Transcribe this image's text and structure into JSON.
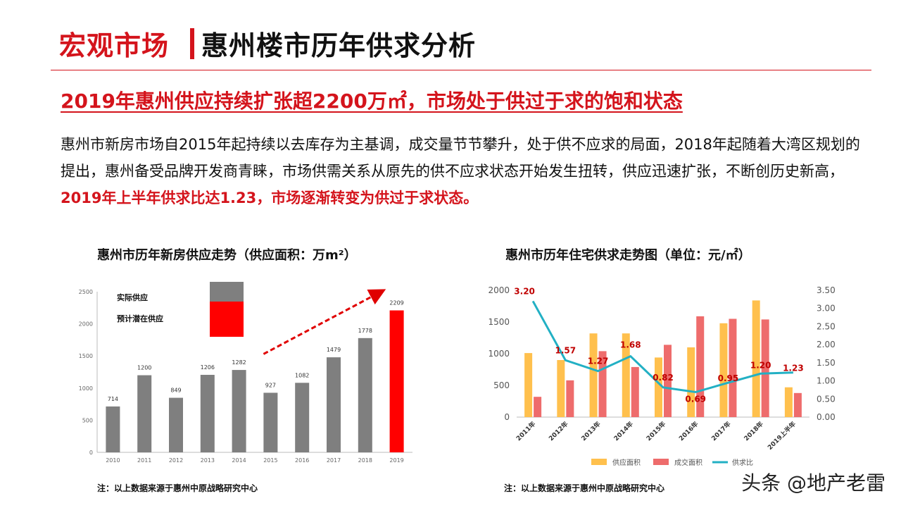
{
  "header": {
    "section": "宏观市场",
    "title": "惠州楼市历年供求分析"
  },
  "headline": "2019年惠州供应持续扩张超2200万㎡，市场处于供过于求的饱和状态",
  "body": {
    "text": "惠州市新房市场自2015年起持续以去库存为主基调，成交量节节攀升，处于供不应求的局面，2018年起随着大湾区规划的提出，惠州备受品牌开发商青睐，市场供需关系从原先的供不应求状态开始发生扭转，供应迅速扩张，不断创历史新高，",
    "highlight": "2019年上半年供求比达1.23，市场逐渐转变为供过于求状态。"
  },
  "chart_data": [
    {
      "type": "bar",
      "title": "惠州市历年新房供应走势（供应面积：万m²）",
      "categories": [
        "2010",
        "2011",
        "2012",
        "2013",
        "2014",
        "2015",
        "2016",
        "2017",
        "2018",
        "2019"
      ],
      "values": [
        714,
        1200,
        849,
        1206,
        1282,
        927,
        1082,
        1479,
        1778,
        2209
      ],
      "highlight_category": "2019",
      "legend": [
        "实际供应",
        "预计潜在供应"
      ],
      "legend_placement": "top-left",
      "ylim": [
        0,
        2500
      ],
      "yticks": [
        "0",
        "500",
        "1000",
        "1500",
        "2000",
        "2500"
      ],
      "colors": {
        "actual": "#7f7f7f",
        "projected": "#ff0000"
      },
      "trend_arrow": true
    },
    {
      "type": "bar+line",
      "title": "惠州市历年住宅供求走势图（单位：元/㎡）",
      "categories": [
        "2011年",
        "2012年",
        "2013年",
        "2014年",
        "2015年",
        "2016年",
        "2017年",
        "2018年",
        "2019上半年"
      ],
      "series": [
        {
          "name": "供应面积",
          "type": "bar",
          "axis": "left",
          "color": "#ffc04d",
          "values": [
            1010,
            900,
            1320,
            1320,
            940,
            1100,
            1480,
            1840,
            470
          ]
        },
        {
          "name": "成交面积",
          "type": "bar",
          "axis": "left",
          "color": "#ee6c6c",
          "values": [
            320,
            580,
            1040,
            790,
            1140,
            1590,
            1550,
            1540,
            380
          ]
        },
        {
          "name": "供求比",
          "type": "line",
          "axis": "right",
          "color": "#22b0c4",
          "values": [
            3.2,
            1.57,
            1.27,
            1.68,
            0.82,
            0.69,
            0.95,
            1.2,
            1.23
          ],
          "labels": [
            "3.20",
            "1.57",
            "1.27",
            "1.68",
            "0.82",
            "0.69",
            "0.95",
            "1.20",
            "1.23"
          ]
        }
      ],
      "ylim_left": [
        0,
        2000
      ],
      "yticks_left": [
        "0",
        "500",
        "1000",
        "1500",
        "2000"
      ],
      "ylim_right": [
        0,
        3.5
      ],
      "yticks_right": [
        "0.00",
        "0.50",
        "1.00",
        "1.50",
        "2.00",
        "2.50",
        "3.00",
        "3.50"
      ],
      "legend_placement": "bottom"
    }
  ],
  "notes": [
    "注：以上数据来源于惠州中原战略研究中心",
    "注：以上数据来源于惠州中原战略研究中心"
  ],
  "watermark": "头条 @地产老雷"
}
